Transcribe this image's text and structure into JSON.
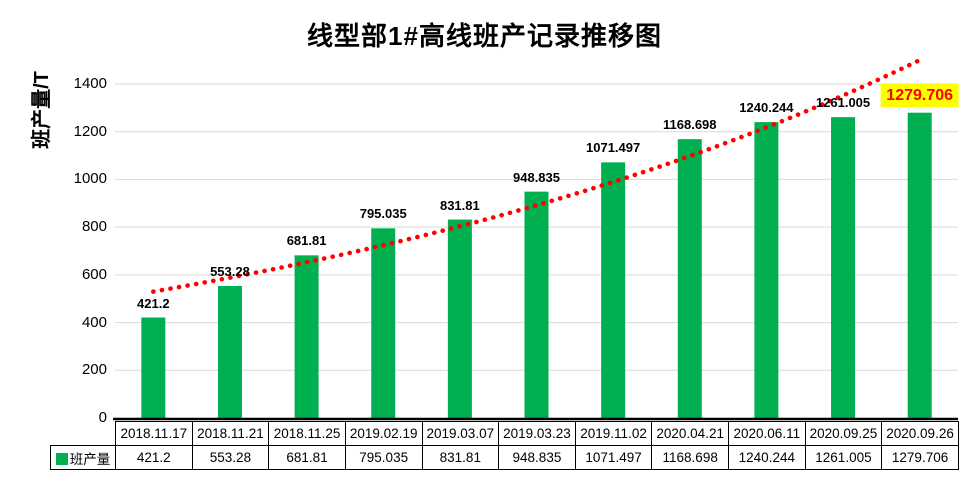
{
  "chart_data": {
    "type": "bar",
    "title": "线型部1#高线班产记录推移图",
    "ylabel": "班产量/T",
    "xlabel": "",
    "legend_label": "班产量",
    "legend_position": "bottom-table",
    "categories": [
      "2018.11.17",
      "2018.11.21",
      "2018.11.25",
      "2019.02.19",
      "2019.03.07",
      "2019.03.23",
      "2019.11.02",
      "2020.04.21",
      "2020.06.11",
      "2020.09.25",
      "2020.09.26"
    ],
    "values": [
      421.2,
      553.28,
      681.81,
      795.035,
      831.81,
      948.835,
      1071.497,
      1168.698,
      1240.244,
      1261.005,
      1279.706
    ],
    "data_labels": [
      "421.2",
      "553.28",
      "681.81",
      "795.035",
      "831.81",
      "948.835",
      "1071.497",
      "1168.698",
      "1240.244",
      "1261.005",
      "1279.706"
    ],
    "ylim": [
      0,
      1400
    ],
    "yticks": [
      0,
      200,
      400,
      600,
      800,
      1000,
      1200,
      1400
    ],
    "grid": true,
    "bar_color": "#00B050",
    "grid_color": "#D9D9D9",
    "axis_color": "#000000",
    "label_color": "#000000",
    "trendline": {
      "type": "exponential",
      "style": "dotted",
      "color": "#FF0000",
      "start_value": 530,
      "end_value": 1500
    },
    "highlight": {
      "index": 10,
      "bg": "#FFFF00",
      "color": "#FF0000"
    }
  }
}
